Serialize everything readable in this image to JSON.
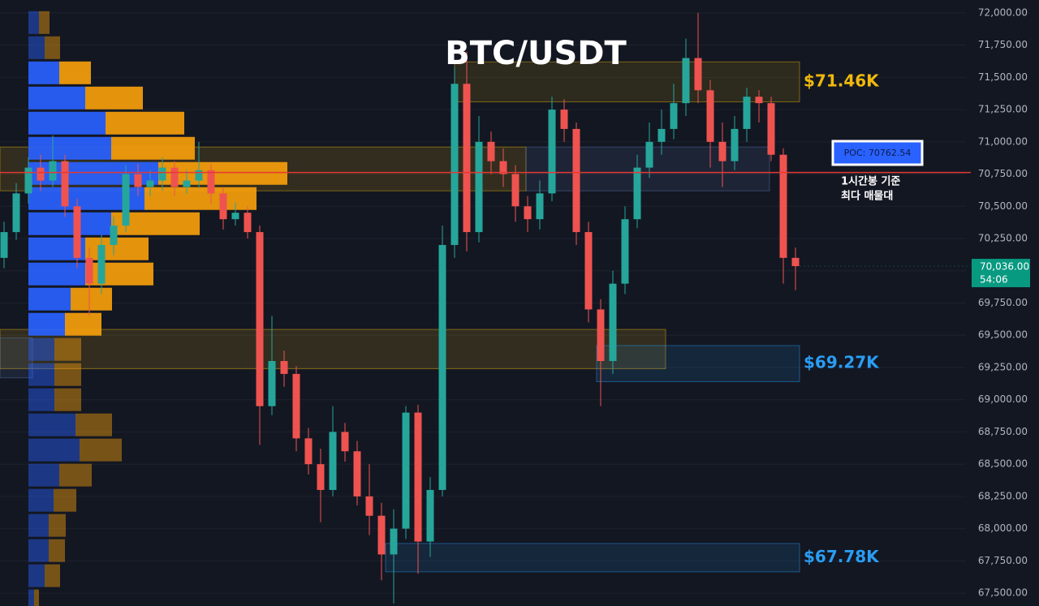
{
  "chart_data": {
    "type": "candlestick",
    "title": "BTC/USDT",
    "up_color": "#26a69a",
    "down_color": "#ef5350",
    "ylim": [
      67400,
      72100
    ],
    "yticks": [
      {
        "value": 67500,
        "label": "67,500.00"
      },
      {
        "value": 67750,
        "label": "67,750.00"
      },
      {
        "value": 68000,
        "label": "68,000.00"
      },
      {
        "value": 68250,
        "label": "68,250.00"
      },
      {
        "value": 68500,
        "label": "68,500.00"
      },
      {
        "value": 68750,
        "label": "68,750.00"
      },
      {
        "value": 69000,
        "label": "69,000.00"
      },
      {
        "value": 69250,
        "label": "69,250.00"
      },
      {
        "value": 69500,
        "label": "69,500.00"
      },
      {
        "value": 69750,
        "label": "69,750.00"
      },
      {
        "value": 70000,
        "label": "70,000.00"
      },
      {
        "value": 70250,
        "label": "70,250.00"
      },
      {
        "value": 70500,
        "label": "70,500.00"
      },
      {
        "value": 70750,
        "label": "70,750.00"
      },
      {
        "value": 71000,
        "label": "71,000.00"
      },
      {
        "value": 71250,
        "label": "71,250.00"
      },
      {
        "value": 71500,
        "label": "71,500.00"
      },
      {
        "value": 71750,
        "label": "71,750.00"
      },
      {
        "value": 72000,
        "label": "72,000.00"
      }
    ],
    "candles": [
      [
        70100,
        70380,
        70020,
        70300
      ],
      [
        70300,
        70680,
        70240,
        70600
      ],
      [
        70600,
        70880,
        70520,
        70800
      ],
      [
        70800,
        70900,
        70620,
        70700
      ],
      [
        70700,
        71050,
        70650,
        70850
      ],
      [
        70850,
        70900,
        70420,
        70500
      ],
      [
        70500,
        70560,
        70020,
        70100
      ],
      [
        70100,
        70180,
        69650,
        69900
      ],
      [
        69900,
        70280,
        69820,
        70200
      ],
      [
        70200,
        70420,
        70120,
        70350
      ],
      [
        70350,
        70820,
        70300,
        70750
      ],
      [
        70750,
        70830,
        70580,
        70650
      ],
      [
        70650,
        70780,
        70580,
        70700
      ],
      [
        70700,
        70880,
        70620,
        70800
      ],
      [
        70800,
        70850,
        70580,
        70650
      ],
      [
        70650,
        70780,
        70600,
        70700
      ],
      [
        70700,
        71000,
        70640,
        70780
      ],
      [
        70780,
        70830,
        70520,
        70600
      ],
      [
        70600,
        70650,
        70320,
        70400
      ],
      [
        70400,
        70530,
        70350,
        70450
      ],
      [
        70450,
        70500,
        70250,
        70300
      ],
      [
        70300,
        70350,
        68650,
        68950
      ],
      [
        68950,
        69650,
        68880,
        69300
      ],
      [
        69300,
        69380,
        69100,
        69200
      ],
      [
        69200,
        69260,
        68600,
        68700
      ],
      [
        68700,
        68780,
        68420,
        68500
      ],
      [
        68500,
        68620,
        68050,
        68300
      ],
      [
        68300,
        68950,
        68250,
        68750
      ],
      [
        68750,
        68820,
        68520,
        68600
      ],
      [
        68600,
        68680,
        68180,
        68250
      ],
      [
        68250,
        68500,
        67950,
        68100
      ],
      [
        68100,
        68200,
        67600,
        67800
      ],
      [
        67800,
        68150,
        67420,
        68000
      ],
      [
        68000,
        68950,
        67920,
        68900
      ],
      [
        68900,
        68960,
        67650,
        67900
      ],
      [
        67900,
        68400,
        67780,
        68300
      ],
      [
        68300,
        70350,
        68250,
        70200
      ],
      [
        70200,
        71580,
        70100,
        71450
      ],
      [
        71450,
        71700,
        70150,
        70300
      ],
      [
        70300,
        71200,
        70220,
        71000
      ],
      [
        71000,
        71080,
        70750,
        70850
      ],
      [
        70850,
        70950,
        70650,
        70750
      ],
      [
        70750,
        70820,
        70380,
        70500
      ],
      [
        70500,
        70580,
        70300,
        70400
      ],
      [
        70400,
        70700,
        70320,
        70600
      ],
      [
        70600,
        71350,
        70540,
        71250
      ],
      [
        71250,
        71330,
        71000,
        71100
      ],
      [
        71100,
        71150,
        70200,
        70300
      ],
      [
        70300,
        70380,
        69600,
        69700
      ],
      [
        69700,
        69780,
        68950,
        69300
      ],
      [
        69300,
        70000,
        69200,
        69900
      ],
      [
        69900,
        70500,
        69820,
        70400
      ],
      [
        70400,
        70900,
        70330,
        70800
      ],
      [
        70800,
        71150,
        70720,
        71000
      ],
      [
        71000,
        71250,
        70900,
        71100
      ],
      [
        71100,
        71450,
        71020,
        71300
      ],
      [
        71300,
        71800,
        71200,
        71650
      ],
      [
        71650,
        72000,
        71300,
        71400
      ],
      [
        71400,
        71480,
        70800,
        71000
      ],
      [
        71000,
        71150,
        70650,
        70850
      ],
      [
        70850,
        71200,
        70780,
        71100
      ],
      [
        71100,
        71420,
        71000,
        71350
      ],
      [
        71350,
        71400,
        71150,
        71300
      ],
      [
        71300,
        71350,
        70850,
        70900
      ],
      [
        70900,
        70950,
        69900,
        70100
      ],
      [
        70100,
        70180,
        69850,
        70036
      ]
    ],
    "profile": {
      "buy_color": "#2962ff",
      "sell_color": "#f59e0b",
      "value_area": [
        69480,
        71640
      ],
      "prices": [
        71925,
        71730,
        71535,
        71340,
        71145,
        70950,
        70755,
        70560,
        70365,
        70170,
        69975,
        69780,
        69585,
        69390,
        69195,
        69000,
        68805,
        68610,
        68415,
        68220,
        68025,
        67830,
        67635,
        67440
      ],
      "buy": [
        13,
        20,
        38,
        70,
        95,
        102,
        160,
        143,
        102,
        70,
        70,
        52,
        45,
        32,
        32,
        32,
        58,
        63,
        38,
        31,
        25,
        25,
        20,
        7
      ],
      "sell": [
        13,
        19,
        39,
        71,
        97,
        103,
        159,
        138,
        109,
        78,
        84,
        51,
        45,
        33,
        33,
        33,
        45,
        52,
        40,
        28,
        21,
        20,
        19,
        6
      ]
    },
    "zones": [
      {
        "label": "$71.46K",
        "top": 71620,
        "bottom": 71310,
        "color": "#f0b90b"
      },
      {
        "label": "$69.27K",
        "top": 69420,
        "bottom": 69140,
        "color": "#2a9df4"
      },
      {
        "label": "$67.78K",
        "top": 67885,
        "bottom": 67665,
        "color": "#2a9df4"
      }
    ],
    "bands": [
      {
        "top": 70960,
        "bottom": 70620,
        "color": "#f0b90b"
      },
      {
        "top": 70960,
        "bottom": 70620,
        "color": "#5a7bb0"
      },
      {
        "top": 69545,
        "bottom": 69240,
        "color": "#f0b90b"
      },
      {
        "top": 69480,
        "bottom": 69170,
        "color": "#5a7bb0"
      }
    ],
    "poc": {
      "value": 70762.54,
      "label": "POC: 70762.54",
      "color": "#e53935"
    },
    "poc_note": [
      "1시간봉 기준",
      "최다 매물대"
    ],
    "last_price": {
      "value": 70036,
      "label": "70,036.00",
      "countdown": "54:06",
      "color": "#089981"
    }
  }
}
